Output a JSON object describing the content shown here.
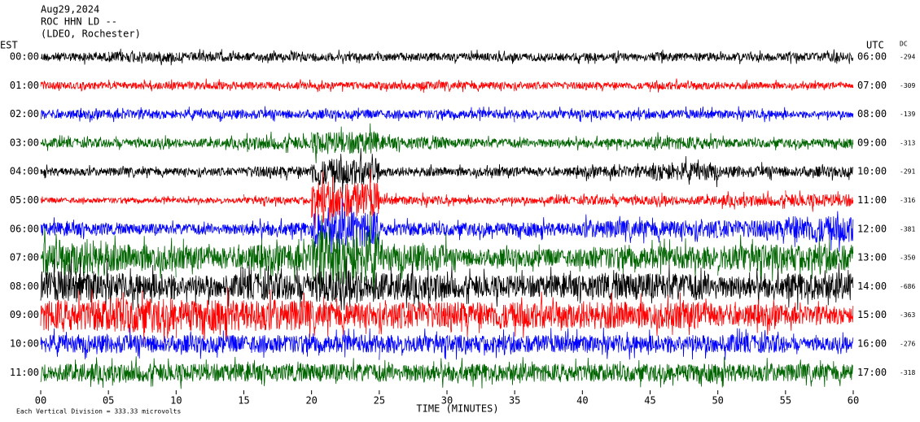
{
  "chart_data": {
    "type": "helicorder",
    "title_lines": [
      "Aug29,2024",
      "ROC HHN LD --",
      "(LDEO, Rochester)"
    ],
    "left_label": "EST",
    "right_label": "UTC",
    "dc_label": "DC",
    "xlabel": "TIME (MINUTES)",
    "footer": "Each Vertical Division =  333.33 microvolts",
    "xlim": [
      0,
      60
    ],
    "xticks": [
      {
        "value": 0,
        "label": "00"
      },
      {
        "value": 5,
        "label": "05"
      },
      10,
      15,
      20,
      25,
      30,
      35,
      40,
      45,
      50,
      55,
      60
    ],
    "rows": [
      {
        "est": "00:00",
        "utc": "06:00",
        "dc": -294,
        "color": "#000000",
        "amplitude": [
          94,
          113,
          94,
          85,
          85,
          85,
          85,
          85,
          85,
          94,
          85,
          94
        ]
      },
      {
        "est": "01:00",
        "utc": "07:00",
        "dc": -309,
        "color": "#ff0000",
        "amplitude": [
          75,
          75,
          85,
          75,
          75,
          85,
          85,
          75,
          75,
          85,
          75,
          66
        ]
      },
      {
        "est": "02:00",
        "utc": "08:00",
        "dc": -139,
        "color": "#0000ff",
        "amplitude": [
          94,
          94,
          94,
          94,
          94,
          94,
          94,
          94,
          94,
          94,
          94,
          75
        ]
      },
      {
        "est": "03:00",
        "utc": "09:00",
        "dc": -313,
        "color": "#006400",
        "amplitude": [
          94,
          94,
          94,
          132,
          236,
          132,
          94,
          94,
          94,
          132,
          94,
          94
        ]
      },
      {
        "est": "04:00",
        "utc": "10:00",
        "dc": -291,
        "color": "#000000",
        "amplitude": [
          85,
          85,
          85,
          113,
          283,
          94,
          94,
          94,
          113,
          189,
          113,
          113
        ]
      },
      {
        "est": "05:00",
        "utc": "11:00",
        "dc": -316,
        "color": "#ff0000",
        "amplitude": [
          56,
          56,
          56,
          75,
          377,
          94,
          75,
          75,
          94,
          94,
          113,
          132
        ]
      },
      {
        "est": "06:00",
        "utc": "12:00",
        "dc": -381,
        "color": "#0000ff",
        "amplitude": [
          141,
          113,
          113,
          141,
          377,
          141,
          141,
          141,
          189,
          189,
          189,
          283
        ]
      },
      {
        "est": "07:00",
        "utc": "13:00",
        "dc": -350,
        "color": "#006400",
        "amplitude": [
          377,
          283,
          236,
          283,
          566,
          283,
          189,
          189,
          236,
          236,
          283,
          283
        ]
      },
      {
        "est": "08:00",
        "utc": "14:00",
        "dc": -686,
        "color": "#000000",
        "amplitude": [
          330,
          283,
          236,
          283,
          330,
          283,
          236,
          236,
          283,
          283,
          236,
          283
        ]
      },
      {
        "est": "09:00",
        "utc": "15:00",
        "dc": -363,
        "color": "#ff0000",
        "amplitude": [
          330,
          377,
          330,
          330,
          283,
          283,
          283,
          283,
          283,
          283,
          236,
          189
        ]
      },
      {
        "est": "10:00",
        "utc": "16:00",
        "dc": -276,
        "color": "#0000ff",
        "amplitude": [
          189,
          189,
          189,
          189,
          189,
          189,
          189,
          189,
          189,
          189,
          189,
          141
        ]
      },
      {
        "est": "11:00",
        "utc": "17:00",
        "dc": -318,
        "color": "#006400",
        "amplitude": [
          189,
          189,
          189,
          189,
          189,
          189,
          189,
          189,
          189,
          189,
          189,
          189
        ]
      }
    ]
  }
}
